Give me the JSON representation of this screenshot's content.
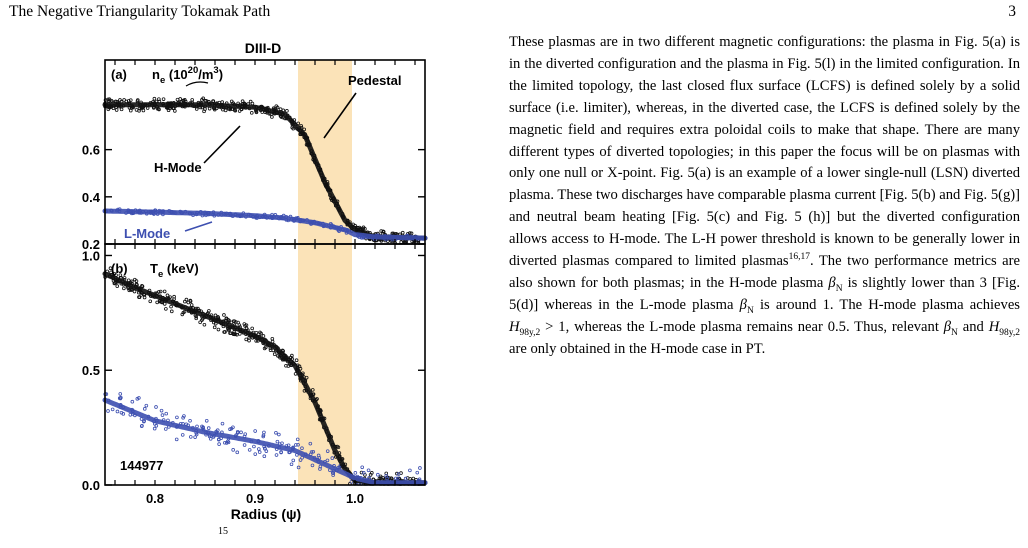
{
  "header": {
    "title": "The Negative Triangularity Tokamak Path",
    "page_number": "3"
  },
  "figure": {
    "machine_label": "DIII-D",
    "panel_a": {
      "label": "(a)",
      "quantity": "n",
      "quantity_sub": "e",
      "units": "(10",
      "units_exp": "20",
      "units_tail": "/m",
      "units_exp2": "3",
      "units_close": ")",
      "pedestal_label": "Pedestal",
      "hmode_label": "H-Mode",
      "lmode_label": "L-Mode"
    },
    "panel_b": {
      "label": "(b)",
      "quantity": "T",
      "quantity_sub": "e",
      "units": "(keV)",
      "shot_number": "144977"
    },
    "xlabel": "Radius (ψ)",
    "colors": {
      "hmode": "#111111",
      "lmode": "#3d4fb0",
      "pedestal_band": "#fbe3b8"
    }
  },
  "chart_data": [
    {
      "type": "line",
      "title": "DIII-D",
      "panel": "(a)",
      "ylabel": "n_e (10^20/m^3)",
      "xlim": [
        0.75,
        1.07
      ],
      "ylim": [
        0.2,
        0.98
      ],
      "yticks": [
        0.2,
        0.4,
        0.6
      ],
      "ytick_labels": [
        "0.2",
        "0.4",
        "0.6"
      ],
      "shaded_region": {
        "label": "Pedestal",
        "x": [
          0.943,
          0.997
        ]
      },
      "series": [
        {
          "name": "H-Mode",
          "x": [
            0.75,
            0.8,
            0.85,
            0.9,
            0.93,
            0.95,
            0.97,
            0.99,
            1.0,
            1.02,
            1.07
          ],
          "y": [
            0.79,
            0.79,
            0.79,
            0.78,
            0.75,
            0.66,
            0.46,
            0.3,
            0.26,
            0.23,
            0.225
          ]
        },
        {
          "name": "L-Mode",
          "x": [
            0.75,
            0.8,
            0.85,
            0.9,
            0.93,
            0.96,
            0.99,
            1.0,
            1.02,
            1.07
          ],
          "y": [
            0.34,
            0.335,
            0.33,
            0.32,
            0.31,
            0.29,
            0.26,
            0.24,
            0.23,
            0.225
          ]
        }
      ]
    },
    {
      "type": "line",
      "panel": "(b)",
      "ylabel": "T_e (keV)",
      "xlabel": "Radius (ψ)",
      "xlim": [
        0.75,
        1.07
      ],
      "ylim": [
        0.0,
        1.05
      ],
      "xticks": [
        0.8,
        0.9,
        1.0
      ],
      "xtick_labels": [
        "0.8",
        "0.9",
        "1.0"
      ],
      "yticks": [
        0.0,
        0.5,
        1.0
      ],
      "ytick_labels": [
        "0.0",
        "0.5",
        "1.0"
      ],
      "shaded_region": {
        "label": "Pedestal",
        "x": [
          0.943,
          0.997
        ]
      },
      "series": [
        {
          "name": "H-Mode",
          "x": [
            0.75,
            0.78,
            0.82,
            0.86,
            0.9,
            0.92,
            0.94,
            0.96,
            0.98,
            0.99,
            1.0,
            1.02,
            1.07
          ],
          "y": [
            0.92,
            0.86,
            0.79,
            0.72,
            0.65,
            0.6,
            0.52,
            0.36,
            0.15,
            0.07,
            0.02,
            0.01,
            0.01
          ]
        },
        {
          "name": "L-Mode",
          "x": [
            0.75,
            0.8,
            0.85,
            0.9,
            0.94,
            0.97,
            1.0,
            1.02,
            1.07
          ],
          "y": [
            0.37,
            0.28,
            0.23,
            0.19,
            0.15,
            0.09,
            0.03,
            0.01,
            0.01
          ]
        }
      ]
    }
  ],
  "footnote_fragment": "15",
  "text": {
    "p1": "These plasmas are in two different magnetic configurations: the plasma in Fig. 5(a) is in the diverted configuration and the plasma in Fig. 5(l) in the limited configuration. In the limited topology, the last closed flux surface (LCFS) is defined solely by a solid surface (i.e. limiter), whereas, in the diverted case, the LCFS is defined solely by the magnetic field and requires extra poloidal coils to make that shape. There are many different types of diverted topologies; in this paper the focus will be on plasmas with only one null or X-point. Fig. 5(a) is an example of a lower single-null (LSN) diverted plasma. These two discharges have comparable plasma current [Fig. 5(b) and Fig. 5(g)] and neutral beam heating [Fig. 5(c) and Fig. 5 (h)] but the diverted configuration allows access to H-mode. The L-H power threshold is known to be generally lower in diverted plasmas compared to limited plasmas",
    "p1_cite": "16,17",
    "p2": ". The two performance metrics are also shown for both plasmas; in the H-mode plasma ",
    "beta": "β",
    "beta_sub": "N",
    "p3": " is slightly lower than 3 [Fig. 5(d)] whereas in the L-mode plasma ",
    "p4": " is around 1. The H-mode plasma achieves ",
    "h": "H",
    "h_sub": "98y,2",
    "gt_one": " > 1",
    "p5": ", whereas the L-mode plasma remains near 0.5. Thus, relevant ",
    "and": " and ",
    "p6": " are only obtained in the H-mode case in PT."
  }
}
